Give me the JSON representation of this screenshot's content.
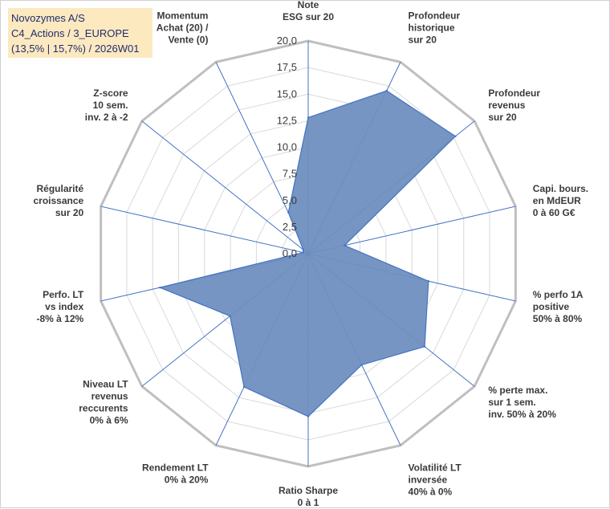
{
  "header": {
    "line1": "Novozymes A/S",
    "line2": "C4_Actions / 3_EUROPE",
    "line3": "(13,5% | 15,7%) / 2026W01"
  },
  "colors": {
    "fill": "#6f8fbf",
    "stroke": "#4472c4",
    "grid": "#d9d9d9",
    "outer_ring": "#bfbfbf",
    "spoke": "#4472c4"
  },
  "chart_data": {
    "type": "radar",
    "title": "Novozymes A/S",
    "rmin": 0,
    "rmax": 20,
    "tick_step": 2.5,
    "tick_labels": [
      "0,0",
      "2,5",
      "5,0",
      "7,5",
      "10,0",
      "12,5",
      "15,0",
      "17,5",
      "20,0"
    ],
    "axes": [
      {
        "label": [
          "Note",
          "ESG sur 20"
        ],
        "value": 12.8
      },
      {
        "label": [
          "Profondeur",
          "historique",
          "sur 20"
        ],
        "value": 17.0
      },
      {
        "label": [
          "Profondeur",
          "revenus",
          "sur 20"
        ],
        "value": 17.7
      },
      {
        "label": [
          "Capi. bours.",
          "en MdEUR",
          "0 à 60 G€"
        ],
        "value": 3.5
      },
      {
        "label": [
          "% perfo 1A",
          "positive",
          "50% à 80%"
        ],
        "value": 11.6
      },
      {
        "label": [
          "% perte max.",
          "sur 1 sem.",
          "inv. 50% à 20%"
        ],
        "value": 14.0
      },
      {
        "label": [
          "Volatilité LT",
          "inversée",
          "40% à 0%"
        ],
        "value": 11.6
      },
      {
        "label": [
          "Ratio Sharpe",
          "0 à 1"
        ],
        "value": 15.3
      },
      {
        "label": [
          "Rendement LT",
          "0% à 20%"
        ],
        "value": 13.9
      },
      {
        "label": [
          "Niveau LT",
          "revenus",
          "reccurents",
          "0% à 6%"
        ],
        "value": 9.4
      },
      {
        "label": [
          "Perfo. LT",
          "vs index",
          "-8% à 12%"
        ],
        "value": 14.3
      },
      {
        "label": [
          "Régularité",
          "croissance",
          "sur 20"
        ],
        "value": 0.5
      },
      {
        "label": [
          "Z-score",
          "10 sem.",
          "inv. 2 à -2"
        ],
        "value": 0.6
      },
      {
        "label": [
          "Momentum",
          "Achat (20) /",
          "Vente (0)"
        ],
        "value": 4.3
      }
    ]
  }
}
